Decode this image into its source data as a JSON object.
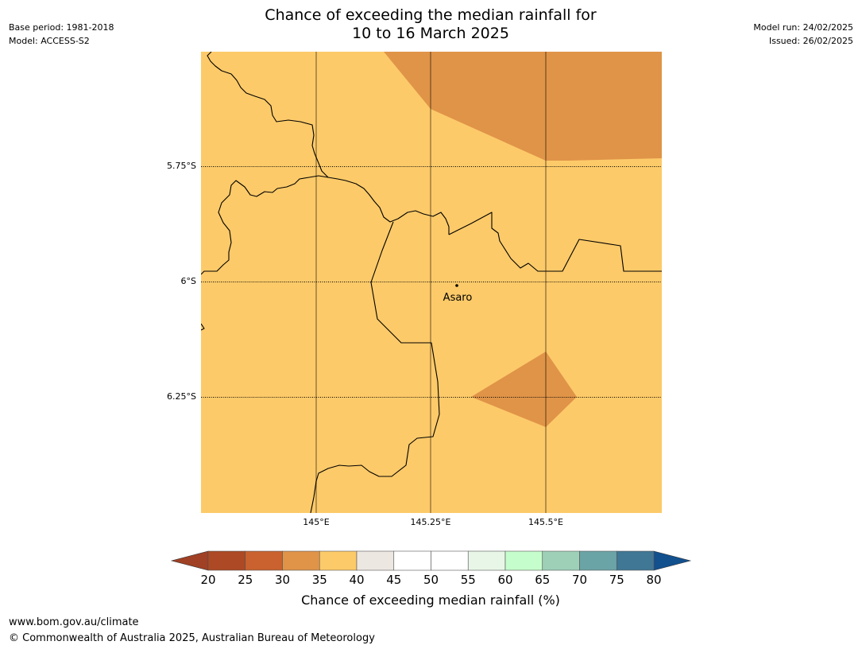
{
  "header": {
    "title_line1": "Chance of exceeding the median rainfall for",
    "title_line2": "10 to 16 March 2025",
    "base_period": "Base period: 1981-2018",
    "model": "Model: ACCESS-S2",
    "model_run": "Model run: 24/02/2025",
    "issued": "Issued: 26/02/2025"
  },
  "map": {
    "latitude_labels": [
      "5.75°S",
      "6°S",
      "6.25°S"
    ],
    "longitude_labels": [
      "145°E",
      "145.25°E",
      "145.5°E"
    ],
    "town": "Asaro",
    "colors": {
      "background": "#fdca69",
      "below": "#e09448",
      "boundary": "#000000",
      "gridline": "#000000"
    }
  },
  "colorbar": {
    "ticks": [
      "20",
      "25",
      "30",
      "35",
      "40",
      "45",
      "50",
      "55",
      "60",
      "65",
      "70",
      "75",
      "80"
    ],
    "colors": [
      "#ad4924",
      "#c9622f",
      "#e09448",
      "#fdca69",
      "#ede7e2",
      "#ffffff",
      "#ffffff",
      "#e8f6e7",
      "#c6fdcc",
      "#9ed0b8",
      "#6ba4a6",
      "#3f7795"
    ],
    "under_color": "#a04024",
    "over_color": "#12508e",
    "label": "Chance of exceeding median rainfall (%)"
  },
  "footer": {
    "website": "www.bom.gov.au/climate",
    "copyright": "© Commonwealth of Australia 2025, Australian Bureau of Meteorology"
  }
}
